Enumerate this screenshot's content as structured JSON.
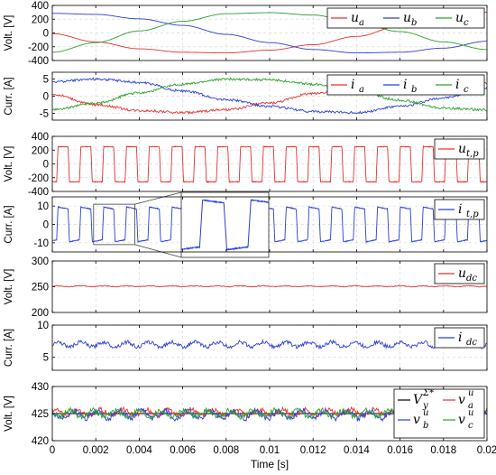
{
  "chart_data": [
    {
      "type": "line",
      "ylabel": "Volt. [V]",
      "ylim": [
        -400,
        400
      ],
      "yticks": [
        -400,
        -200,
        0,
        200,
        400
      ],
      "grid": true,
      "legend_position": "top-right",
      "x_range": [
        0,
        0.02
      ],
      "series": [
        {
          "name": "u",
          "sub": "a",
          "color": "#e8302f",
          "x": [
            0,
            0.002,
            0.004,
            0.006,
            0.008,
            0.01,
            0.012,
            0.014,
            0.016,
            0.018,
            0.02
          ],
          "values": [
            -10,
            -130,
            -230,
            -280,
            -290,
            -250,
            -170,
            -50,
            100,
            225,
            300
          ]
        },
        {
          "name": "u",
          "sub": "b",
          "color": "#2a3fd8",
          "x": [
            0,
            0.002,
            0.004,
            0.006,
            0.008,
            0.01,
            0.012,
            0.014,
            0.016,
            0.018,
            0.02
          ],
          "values": [
            285,
            270,
            205,
            110,
            -20,
            -140,
            -240,
            -290,
            -280,
            -220,
            -120
          ]
        },
        {
          "name": "u",
          "sub": "c",
          "color": "#2aa12a",
          "x": [
            0,
            0.002,
            0.004,
            0.006,
            0.008,
            0.01,
            0.012,
            0.014,
            0.016,
            0.018,
            0.02
          ],
          "values": [
            -280,
            -140,
            30,
            170,
            280,
            295,
            260,
            150,
            20,
            -130,
            -240
          ]
        }
      ]
    },
    {
      "type": "line",
      "ylabel": "Curr. [A]",
      "ylim": [
        -7,
        7
      ],
      "yticks": [
        -5,
        0,
        5
      ],
      "grid": true,
      "legend_position": "top-right",
      "x_range": [
        0,
        0.02
      ],
      "series": [
        {
          "name": "i",
          "sub": "a",
          "color": "#e8302f",
          "x": [
            0,
            0.002,
            0.004,
            0.006,
            0.008,
            0.01,
            0.012,
            0.014,
            0.016,
            0.018,
            0.02
          ],
          "values": [
            0.5,
            -2.5,
            -4.2,
            -4.8,
            -4.0,
            -2.0,
            0.8,
            3.0,
            4.5,
            4.2,
            3.8
          ]
        },
        {
          "name": "i",
          "sub": "b",
          "color": "#2a3fd8",
          "x": [
            0,
            0.002,
            0.004,
            0.006,
            0.008,
            0.01,
            0.012,
            0.014,
            0.016,
            0.018,
            0.02
          ],
          "values": [
            4.2,
            5.0,
            4.0,
            1.5,
            -1.0,
            -3.0,
            -4.5,
            -4.8,
            -3.0,
            -0.5,
            2.5
          ]
        },
        {
          "name": "i",
          "sub": "c",
          "color": "#2aa12a",
          "x": [
            0,
            0.002,
            0.004,
            0.006,
            0.008,
            0.01,
            0.012,
            0.014,
            0.016,
            0.018,
            0.02
          ],
          "values": [
            -4.0,
            -2.0,
            1.0,
            3.5,
            5.0,
            4.8,
            3.5,
            1.5,
            -1.2,
            -3.5,
            -4.0
          ]
        }
      ]
    },
    {
      "type": "line",
      "ylabel": "Volt. [V]",
      "ylim": [
        -400,
        400
      ],
      "yticks": [
        -400,
        -200,
        0,
        200,
        400
      ],
      "grid": true,
      "legend_position": "top-right",
      "x_range": [
        0,
        0.02
      ],
      "series": [
        {
          "name": "u",
          "sub": "t,p",
          "color": "#e8302f",
          "waveform": "square",
          "high": 250,
          "low": -260,
          "period": 0.00105,
          "duty": 0.5,
          "phase": 0.0002
        }
      ]
    },
    {
      "type": "line",
      "ylabel": "Curr. [A]",
      "ylim": [
        -15,
        15
      ],
      "yticks": [
        -10,
        0,
        10
      ],
      "grid": true,
      "legend_position": "top-right",
      "x_range": [
        0,
        0.02
      ],
      "series": [
        {
          "name": "i",
          "sub": "t,p",
          "color": "#2a3fd8",
          "waveform": "square",
          "high": 9,
          "low": -9,
          "period": 0.00105,
          "duty": 0.5,
          "phase": 0.0002
        }
      ],
      "zoom_inset": {
        "x_range": [
          0.0019,
          0.0038
        ],
        "y_range": [
          -11,
          11
        ]
      }
    },
    {
      "type": "line",
      "ylabel": "Volt. [V]",
      "ylim": [
        200,
        300
      ],
      "yticks": [
        200,
        250,
        300
      ],
      "grid": true,
      "legend_position": "top-right",
      "x_range": [
        0,
        0.02
      ],
      "series": [
        {
          "name": "u",
          "sub": "dc",
          "color": "#e8302f",
          "level": 251,
          "ripple": 1.5
        }
      ]
    },
    {
      "type": "line",
      "ylabel": "Curr. [A]",
      "ylim": [
        3,
        10
      ],
      "yticks": [
        5,
        10
      ],
      "grid": true,
      "legend_position": "top-right",
      "x_range": [
        0,
        0.02
      ],
      "series": [
        {
          "name": "i",
          "sub": "dc",
          "color": "#2a3fd8",
          "level": 7.0,
          "ripple": 0.6
        }
      ]
    },
    {
      "type": "line",
      "ylabel": "Volt. [V]",
      "ylim": [
        420,
        430
      ],
      "yticks": [
        420,
        425,
        430
      ],
      "grid": true,
      "legend_position": "right",
      "x_range": [
        0,
        0.02
      ],
      "xticks": [
        "0",
        "0.002",
        "0.004",
        "0.006",
        "0.008",
        "0.01",
        "0.012",
        "0.014",
        "0.016",
        "0.018",
        "0.02"
      ],
      "xlabel": "Time [s]",
      "series": [
        {
          "name": "V",
          "sub": "y",
          "sup": "Σ*",
          "color": "#000000",
          "level": 425
        },
        {
          "name": "v",
          "sub": "a",
          "sup": "u",
          "color": "#e8302f",
          "level": 425.2,
          "ripple": 0.9
        },
        {
          "name": "v",
          "sub": "b",
          "sup": "u",
          "color": "#2a3fd8",
          "level": 424.8,
          "ripple": 1.1
        },
        {
          "name": "v",
          "sub": "c",
          "sup": "u",
          "color": "#2aa12a",
          "level": 425.0,
          "ripple": 1.0
        }
      ]
    }
  ]
}
